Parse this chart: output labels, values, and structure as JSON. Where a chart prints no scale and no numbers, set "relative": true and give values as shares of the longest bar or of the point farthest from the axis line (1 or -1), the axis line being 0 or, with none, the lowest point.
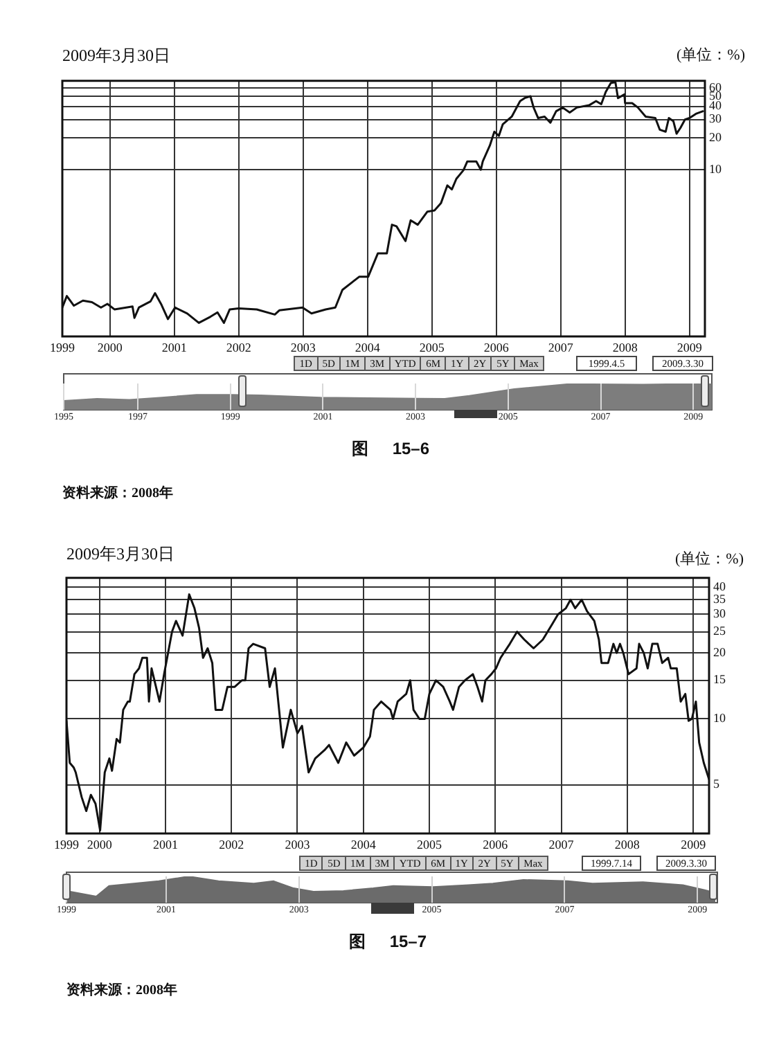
{
  "chart_data": [
    {
      "type": "line",
      "title": "2009年3月30日",
      "ylabel": "(单位：%)",
      "color": "#111111",
      "log": true,
      "grid": true,
      "xlim": [
        1999.26,
        2009.24
      ],
      "xticks": [
        {
          "value": 1999.26,
          "label": "1999"
        },
        2000,
        2001,
        2002,
        2003,
        2004,
        2005,
        2006,
        2007,
        2008,
        2009
      ],
      "ylim": [
        0.26,
        70
      ],
      "yticks": [
        10,
        20,
        30,
        40,
        50,
        60
      ],
      "x": [
        1999.26,
        1999.33,
        1999.44,
        1999.58,
        1999.72,
        1999.86,
        1999.96,
        2000.07,
        2000.35,
        2000.38,
        2000.45,
        2000.63,
        2000.7,
        2000.8,
        2000.9,
        2001.01,
        2001.2,
        2001.38,
        2001.56,
        2001.67,
        2001.77,
        2001.86,
        2002.0,
        2002.28,
        2002.56,
        2002.63,
        2002.99,
        2003.13,
        2003.35,
        2003.5,
        2003.61,
        2003.87,
        2004.01,
        2004.16,
        2004.3,
        2004.38,
        2004.45,
        2004.59,
        2004.67,
        2004.78,
        2004.93,
        2005.04,
        2005.14,
        2005.24,
        2005.31,
        2005.38,
        2005.49,
        2005.55,
        2005.69,
        2005.76,
        2005.79,
        2005.9,
        2005.97,
        2006.04,
        2006.1,
        2006.24,
        2006.37,
        2006.44,
        2006.53,
        2006.58,
        2006.65,
        2006.75,
        2006.84,
        2006.93,
        2007.03,
        2007.14,
        2007.25,
        2007.44,
        2007.55,
        2007.63,
        2007.7,
        2007.78,
        2007.85,
        2007.89,
        2007.99,
        2008.0,
        2008.11,
        2008.2,
        2008.32,
        2008.47,
        2008.54,
        2008.63,
        2008.68,
        2008.75,
        2008.8,
        2008.86,
        2008.93,
        2009.0,
        2009.1,
        2009.21
      ],
      "values": [
        0.49,
        0.63,
        0.51,
        0.57,
        0.55,
        0.49,
        0.53,
        0.47,
        0.5,
        0.39,
        0.49,
        0.56,
        0.67,
        0.52,
        0.38,
        0.49,
        0.43,
        0.35,
        0.4,
        0.44,
        0.35,
        0.47,
        0.48,
        0.47,
        0.42,
        0.46,
        0.49,
        0.43,
        0.47,
        0.49,
        0.72,
        0.96,
        0.96,
        1.6,
        1.6,
        3.0,
        2.9,
        2.1,
        3.3,
        3.0,
        4.0,
        4.1,
        4.8,
        7.1,
        6.5,
        8.2,
        9.9,
        12,
        12,
        10,
        12,
        17,
        23,
        21,
        27,
        32,
        45,
        48,
        50,
        39,
        31,
        32,
        28,
        36,
        39,
        35,
        39,
        41,
        45,
        42,
        55,
        67,
        68,
        48,
        52,
        43,
        43,
        39,
        32,
        31,
        24,
        23,
        31,
        29,
        22,
        25,
        30,
        31,
        34,
        36
      ]
    },
    {
      "type": "area",
      "relative": true,
      "color": "#7d7d7d",
      "grid": "x",
      "xlim": [
        1995.4,
        2009.4
      ],
      "xticks": [
        {
          "value": 1995.4,
          "label": "1995"
        },
        1997,
        1999,
        2001,
        2003,
        2005,
        2007,
        2009
      ],
      "x": [
        1995.4,
        1996.12,
        1996.82,
        1997.52,
        1998.27,
        1999.02,
        1999.66,
        2000.95,
        2003.04,
        2003.63,
        2004.16,
        2005.13,
        2006.31,
        2007.91,
        2009.4
      ],
      "values": [
        0.34,
        0.42,
        0.38,
        0.47,
        0.57,
        0.57,
        0.55,
        0.47,
        0.43,
        0.42,
        0.53,
        0.79,
        0.98,
        0.96,
        1
      ],
      "annotations": [
        "1D",
        "5D",
        "1M",
        "3M",
        "YTD",
        "6M",
        "1Y",
        "2Y",
        "5Y",
        "Max",
        "1999.4.5",
        "2009.3.30",
        "图 15–6",
        "资料来源：2008年"
      ]
    },
    {
      "type": "line",
      "title": "2009年3月30日",
      "ylabel": "(单位：%)",
      "color": "#111111",
      "log": true,
      "grid": true,
      "xlim": [
        1999.5,
        2009.24
      ],
      "xticks": [
        {
          "value": 1999.5,
          "label": "1999"
        },
        2000,
        2001,
        2002,
        2003,
        2004,
        2005,
        2006,
        2007,
        2008,
        2009
      ],
      "ylim": [
        3.0,
        44
      ],
      "yticks": [
        5,
        10,
        15,
        20,
        25,
        30,
        35,
        40
      ],
      "x": [
        1999.5,
        1999.55,
        1999.61,
        1999.64,
        1999.73,
        1999.8,
        1999.87,
        1999.94,
        2000.01,
        2000.08,
        2000.15,
        2000.19,
        2000.26,
        2000.31,
        2000.36,
        2000.43,
        2000.46,
        2000.53,
        2000.6,
        2000.65,
        2000.72,
        2000.75,
        2000.79,
        2000.91,
        2000.98,
        2001.1,
        2001.16,
        2001.26,
        2001.36,
        2001.44,
        2001.51,
        2001.57,
        2001.64,
        2001.71,
        2001.76,
        2001.86,
        2001.94,
        2002.05,
        2002.16,
        2002.21,
        2002.26,
        2002.33,
        2002.51,
        2002.58,
        2002.66,
        2002.78,
        2002.9,
        2003.0,
        2003.07,
        2003.17,
        2003.27,
        2003.41,
        2003.48,
        2003.62,
        2003.74,
        2003.86,
        2004.0,
        2004.1,
        2004.16,
        2004.27,
        2004.41,
        2004.45,
        2004.52,
        2004.65,
        2004.71,
        2004.76,
        2004.85,
        2004.93,
        2005.0,
        2005.1,
        2005.21,
        2005.31,
        2005.36,
        2005.45,
        2005.54,
        2005.66,
        2005.73,
        2005.8,
        2005.85,
        2005.94,
        2006.01,
        2006.08,
        2006.22,
        2006.33,
        2006.44,
        2006.58,
        2006.72,
        2006.86,
        2006.95,
        2007.07,
        2007.14,
        2007.21,
        2007.31,
        2007.39,
        2007.5,
        2007.57,
        2007.61,
        2007.71,
        2007.79,
        2007.84,
        2007.89,
        2007.94,
        2008.02,
        2008.14,
        2008.18,
        2008.25,
        2008.31,
        2008.38,
        2008.46,
        2008.53,
        2008.62,
        2008.66,
        2008.75,
        2008.81,
        2008.88,
        2008.93,
        2008.98,
        2009.04,
        2009.09,
        2009.16,
        2009.24
      ],
      "values": [
        9.8,
        6.3,
        6.0,
        5.7,
        4.4,
        3.8,
        4.5,
        4.1,
        3.1,
        5.7,
        6.6,
        5.8,
        8.1,
        7.8,
        11,
        12,
        12,
        16,
        17,
        19,
        19,
        12,
        17,
        12,
        16,
        25,
        28,
        24,
        37,
        32,
        26,
        19,
        21,
        18,
        11,
        11,
        14,
        14,
        15,
        15,
        21,
        22,
        21,
        14,
        17,
        7.4,
        11,
        8.6,
        9.3,
        5.7,
        6.6,
        7.2,
        7.6,
        6.3,
        7.8,
        6.8,
        7.4,
        8.3,
        11,
        12,
        11,
        10,
        12,
        13,
        15,
        11,
        10,
        10,
        13,
        15,
        14,
        12,
        11,
        14,
        15,
        16,
        14,
        12,
        15,
        16,
        17,
        19,
        22,
        25,
        23,
        21,
        23,
        27,
        30,
        32,
        35,
        32,
        35,
        31,
        28,
        23,
        18,
        18,
        22,
        20,
        22,
        20,
        16,
        17,
        22,
        20,
        17,
        22,
        22,
        18,
        19,
        17,
        17,
        12,
        13,
        9.8,
        10,
        12,
        7.8,
        6.3,
        5.3
      ]
    },
    {
      "type": "area",
      "relative": true,
      "color": "#6b6b6b",
      "grid": "x",
      "xlim": [
        1999.5,
        2009.3
      ],
      "xticks": [
        {
          "value": 1999.5,
          "label": "1999"
        },
        2001,
        2003,
        2005,
        2007,
        2009
      ],
      "x": [
        1999.5,
        1999.95,
        2000.14,
        2000.89,
        2001.34,
        2001.79,
        2002.32,
        2002.62,
        2002.92,
        2003.22,
        2003.67,
        2004.12,
        2004.42,
        2005.02,
        2005.55,
        2005.92,
        2006.38,
        2007.05,
        2007.42,
        2008.18,
        2008.78,
        2009.16,
        2009.27
      ],
      "values": [
        0.45,
        0.24,
        0.64,
        0.82,
        1,
        0.82,
        0.73,
        0.82,
        0.55,
        0.42,
        0.45,
        0.55,
        0.64,
        0.6,
        0.67,
        0.73,
        0.87,
        0.82,
        0.73,
        0.78,
        0.67,
        0.45,
        0.27
      ],
      "annotations": [
        "1D",
        "5D",
        "1M",
        "3M",
        "YTD",
        "6M",
        "1Y",
        "2Y",
        "5Y",
        "Max",
        "1999.7.14",
        "2009.3.30",
        "图 15–7",
        "资料来源：2008年"
      ]
    }
  ]
}
